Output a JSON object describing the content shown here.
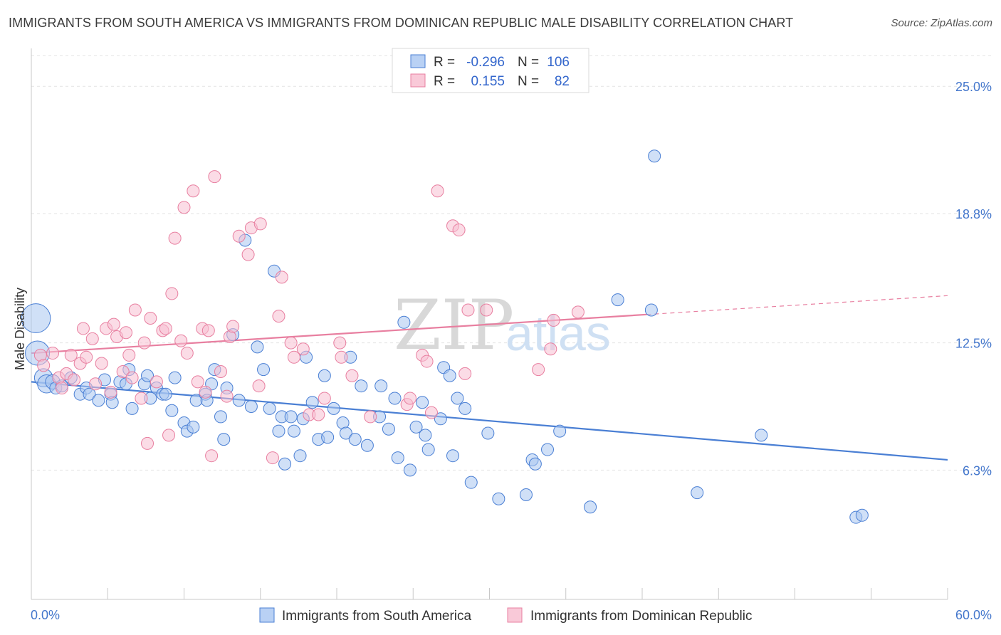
{
  "title": "IMMIGRANTS FROM SOUTH AMERICA VS IMMIGRANTS FROM DOMINICAN REPUBLIC MALE DISABILITY CORRELATION CHART",
  "source": "Source: ZipAtlas.com",
  "watermark": {
    "zip": "ZIP",
    "atlas": "atlas"
  },
  "legend": {
    "r_label": "R =",
    "n_label": "N =",
    "rows": [
      {
        "r": "-0.296",
        "n": "106",
        "color": "#4a7fd4"
      },
      {
        "r": "0.155",
        "n": "82",
        "color": "#e87fa0"
      }
    ]
  },
  "bottom_legend": [
    "Immigrants from South America",
    "Immigrants from Dominican Republic"
  ],
  "chart_data": {
    "type": "scatter",
    "title": "IMMIGRANTS FROM SOUTH AMERICA VS IMMIGRANTS FROM DOMINICAN REPUBLIC MALE DISABILITY CORRELATION CHART",
    "xlabel": "",
    "ylabel": "Male Disability",
    "xlim": [
      0,
      60
    ],
    "ylim": [
      0,
      26.5
    ],
    "x_tick_labels": [
      "0.0%",
      "60.0%"
    ],
    "y_ticks": [
      6.3,
      12.5,
      18.8,
      25.0
    ],
    "y_tick_labels": [
      "6.3%",
      "12.5%",
      "18.8%",
      "25.0%"
    ],
    "series": [
      {
        "name": "Immigrants from South America",
        "color": "#4a7fd4",
        "fill": "#a9c6f0",
        "trend": {
          "x0": 0,
          "y0": 10.6,
          "x1": 60,
          "y1": 6.8,
          "dash_from": 60
        },
        "points": [
          [
            0.3,
            13.7,
            2.4
          ],
          [
            0.4,
            12.0,
            2
          ],
          [
            0.8,
            10.8,
            1.5
          ],
          [
            1.0,
            10.5,
            1.5
          ],
          [
            1.4,
            10.6,
            1.2
          ],
          [
            1.6,
            10.3,
            1
          ],
          [
            2.0,
            10.4,
            1
          ],
          [
            2.6,
            10.8,
            1
          ],
          [
            3.2,
            10.0,
            1
          ],
          [
            3.6,
            10.3,
            1
          ],
          [
            3.8,
            10.0,
            1
          ],
          [
            4.4,
            9.7,
            1
          ],
          [
            4.8,
            10.7,
            1
          ],
          [
            5.2,
            10.0,
            1
          ],
          [
            5.3,
            9.6,
            1
          ],
          [
            5.8,
            10.6,
            1
          ],
          [
            6.2,
            10.5,
            1
          ],
          [
            6.4,
            11.2,
            1
          ],
          [
            6.6,
            9.3,
            1
          ],
          [
            7.4,
            10.5,
            1
          ],
          [
            7.6,
            10.9,
            1
          ],
          [
            7.8,
            9.8,
            1
          ],
          [
            8.2,
            10.3,
            1
          ],
          [
            8.6,
            10.0,
            1
          ],
          [
            8.8,
            10.0,
            1
          ],
          [
            9.2,
            9.2,
            1
          ],
          [
            9.4,
            10.8,
            1
          ],
          [
            10.0,
            8.6,
            1
          ],
          [
            10.2,
            8.2,
            1
          ],
          [
            10.6,
            8.4,
            1
          ],
          [
            10.8,
            9.7,
            1
          ],
          [
            11.4,
            10.0,
            1
          ],
          [
            11.5,
            9.7,
            1
          ],
          [
            11.8,
            10.5,
            1
          ],
          [
            12.0,
            11.2,
            1
          ],
          [
            12.4,
            8.9,
            1
          ],
          [
            12.6,
            7.8,
            1
          ],
          [
            12.8,
            10.3,
            1
          ],
          [
            13.2,
            12.9,
            1
          ],
          [
            13.6,
            9.7,
            1
          ],
          [
            14.0,
            17.5,
            1
          ],
          [
            14.4,
            9.4,
            1
          ],
          [
            14.8,
            12.3,
            1
          ],
          [
            15.2,
            11.2,
            1
          ],
          [
            15.6,
            9.3,
            1
          ],
          [
            15.9,
            16.0,
            1
          ],
          [
            16.2,
            8.2,
            1
          ],
          [
            16.4,
            8.9,
            1
          ],
          [
            16.6,
            6.6,
            1
          ],
          [
            17.0,
            8.9,
            1
          ],
          [
            17.2,
            8.2,
            1
          ],
          [
            17.6,
            7.0,
            1
          ],
          [
            17.8,
            8.8,
            1
          ],
          [
            18.0,
            11.8,
            1
          ],
          [
            18.4,
            9.6,
            1
          ],
          [
            18.8,
            7.8,
            1
          ],
          [
            19.2,
            10.9,
            1
          ],
          [
            19.4,
            7.9,
            1
          ],
          [
            19.8,
            9.3,
            1
          ],
          [
            20.4,
            8.6,
            1
          ],
          [
            20.6,
            8.1,
            1
          ],
          [
            20.9,
            11.8,
            1
          ],
          [
            21.2,
            7.8,
            1
          ],
          [
            21.6,
            10.4,
            1
          ],
          [
            22.0,
            7.5,
            1
          ],
          [
            22.8,
            8.9,
            1
          ],
          [
            22.9,
            10.4,
            1
          ],
          [
            23.4,
            8.3,
            1
          ],
          [
            23.8,
            9.8,
            1
          ],
          [
            24.0,
            6.9,
            1
          ],
          [
            24.4,
            13.5,
            1
          ],
          [
            24.8,
            6.3,
            1
          ],
          [
            25.2,
            8.4,
            1
          ],
          [
            25.6,
            9.6,
            1
          ],
          [
            25.8,
            8.0,
            1
          ],
          [
            26.0,
            7.3,
            1
          ],
          [
            26.8,
            8.8,
            1
          ],
          [
            27.0,
            11.3,
            1
          ],
          [
            27.4,
            10.9,
            1
          ],
          [
            27.6,
            7.0,
            1
          ],
          [
            27.9,
            9.8,
            1
          ],
          [
            28.4,
            9.3,
            1
          ],
          [
            28.8,
            5.7,
            1
          ],
          [
            29.9,
            8.1,
            1
          ],
          [
            30.6,
            4.9,
            1
          ],
          [
            32.4,
            5.1,
            1
          ],
          [
            32.8,
            6.8,
            1
          ],
          [
            33.0,
            6.6,
            1
          ],
          [
            33.8,
            7.3,
            1
          ],
          [
            34.6,
            8.2,
            1
          ],
          [
            36.6,
            4.5,
            1
          ],
          [
            38.4,
            14.6,
            1
          ],
          [
            40.6,
            14.1,
            1
          ],
          [
            40.8,
            21.6,
            1
          ],
          [
            43.6,
            5.2,
            1
          ],
          [
            47.8,
            8.0,
            1
          ],
          [
            54.0,
            4.0,
            1
          ],
          [
            54.4,
            4.1,
            1
          ]
        ]
      },
      {
        "name": "Immigrants from Dominican Republic",
        "color": "#e87fa0",
        "fill": "#f7c0d2",
        "trend": {
          "x0": 0,
          "y0": 12.0,
          "x1": 60,
          "y1": 14.8,
          "dash_from": 40.3
        },
        "points": [
          [
            0.6,
            11.9,
            1
          ],
          [
            0.8,
            11.4,
            1
          ],
          [
            1.4,
            12.0,
            1
          ],
          [
            1.8,
            10.8,
            1
          ],
          [
            2.0,
            10.3,
            1
          ],
          [
            2.3,
            11.0,
            1
          ],
          [
            2.6,
            11.9,
            1
          ],
          [
            2.8,
            10.7,
            1
          ],
          [
            3.2,
            11.5,
            1
          ],
          [
            3.4,
            13.2,
            1
          ],
          [
            3.6,
            11.8,
            1
          ],
          [
            4.0,
            12.7,
            1
          ],
          [
            4.2,
            10.5,
            1
          ],
          [
            4.6,
            11.5,
            1
          ],
          [
            4.9,
            13.2,
            1
          ],
          [
            5.2,
            10.1,
            1
          ],
          [
            5.4,
            13.4,
            1
          ],
          [
            5.6,
            12.8,
            1
          ],
          [
            6.0,
            11.1,
            1
          ],
          [
            6.2,
            13.0,
            1
          ],
          [
            6.4,
            11.9,
            1
          ],
          [
            6.6,
            10.8,
            1
          ],
          [
            6.8,
            14.1,
            1
          ],
          [
            7.2,
            9.8,
            1
          ],
          [
            7.4,
            12.5,
            1
          ],
          [
            7.6,
            7.6,
            1
          ],
          [
            7.8,
            13.7,
            1
          ],
          [
            8.2,
            10.6,
            1
          ],
          [
            8.6,
            13.1,
            1
          ],
          [
            8.8,
            13.2,
            1
          ],
          [
            9.0,
            8.0,
            1
          ],
          [
            9.2,
            14.9,
            1
          ],
          [
            9.4,
            17.6,
            1
          ],
          [
            9.8,
            12.6,
            1
          ],
          [
            10.0,
            19.1,
            1
          ],
          [
            10.2,
            12.0,
            1
          ],
          [
            10.6,
            19.9,
            1
          ],
          [
            10.9,
            10.6,
            1
          ],
          [
            11.2,
            13.2,
            1
          ],
          [
            11.4,
            10.1,
            1
          ],
          [
            11.6,
            13.1,
            1
          ],
          [
            11.8,
            7.0,
            1
          ],
          [
            12.0,
            20.6,
            1
          ],
          [
            12.4,
            11.1,
            1
          ],
          [
            12.8,
            9.9,
            1
          ],
          [
            13.0,
            12.8,
            1
          ],
          [
            13.2,
            13.3,
            1
          ],
          [
            13.6,
            17.7,
            1
          ],
          [
            14.2,
            16.8,
            1
          ],
          [
            14.4,
            18.1,
            1
          ],
          [
            15.0,
            18.3,
            1
          ],
          [
            14.9,
            10.4,
            1
          ],
          [
            15.8,
            6.9,
            1
          ],
          [
            16.2,
            13.8,
            1
          ],
          [
            16.4,
            15.7,
            1
          ],
          [
            17.0,
            12.5,
            1
          ],
          [
            17.2,
            11.8,
            1
          ],
          [
            17.8,
            12.2,
            1
          ],
          [
            18.2,
            9.0,
            1
          ],
          [
            18.8,
            9.0,
            1
          ],
          [
            19.2,
            9.8,
            1
          ],
          [
            20.2,
            12.5,
            1
          ],
          [
            20.3,
            11.8,
            1
          ],
          [
            21.0,
            10.9,
            1
          ],
          [
            22.2,
            8.9,
            1
          ],
          [
            24.6,
            9.5,
            1
          ],
          [
            24.8,
            9.8,
            1
          ],
          [
            25.6,
            11.9,
            1
          ],
          [
            25.9,
            11.6,
            1
          ],
          [
            26.2,
            9.1,
            1
          ],
          [
            26.6,
            19.9,
            1
          ],
          [
            27.6,
            18.2,
            1
          ],
          [
            28.0,
            18.0,
            1
          ],
          [
            28.4,
            11.0,
            1
          ],
          [
            28.6,
            14.1,
            1
          ],
          [
            29.8,
            14.1,
            1
          ],
          [
            33.2,
            11.2,
            1
          ],
          [
            34.0,
            12.2,
            1
          ],
          [
            34.2,
            13.6,
            1
          ],
          [
            35.8,
            14.0,
            1
          ]
        ]
      }
    ]
  }
}
